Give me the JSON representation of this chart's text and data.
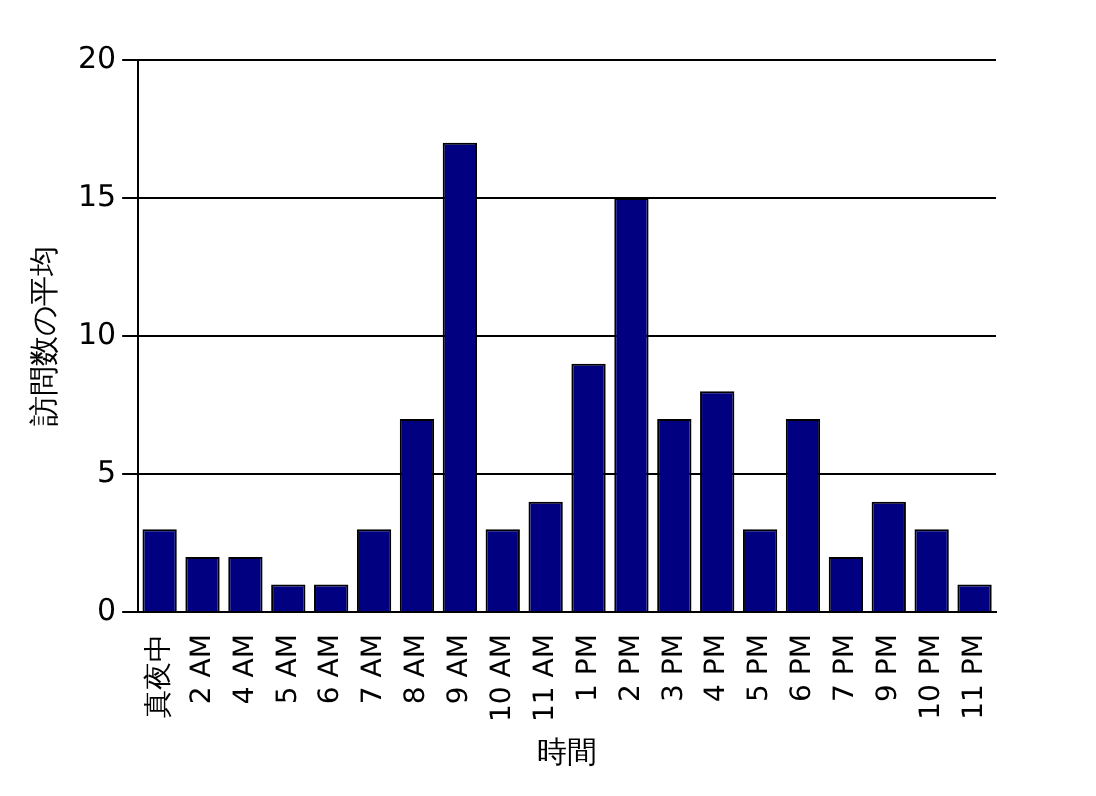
{
  "chart_data": {
    "type": "bar",
    "xlabel": "時間",
    "ylabel": "訪問数の平均",
    "categories": [
      "真夜中",
      "2 AM",
      "4 AM",
      "5 AM",
      "6 AM",
      "7 AM",
      "8 AM",
      "9 AM",
      "10 AM",
      "11 AM",
      "1 PM",
      "2 PM",
      "3 PM",
      "4 PM",
      "5 PM",
      "6 PM",
      "7 PM",
      "9 PM",
      "10 PM",
      "11 PM"
    ],
    "values": [
      3,
      2,
      2,
      1,
      1,
      3,
      7,
      17,
      3,
      4,
      9,
      15,
      7,
      8,
      3,
      7,
      2,
      4,
      3,
      1
    ],
    "color": "#000080",
    "ylim": [
      0,
      20
    ],
    "yticks": [
      0,
      5,
      10,
      15,
      20
    ],
    "grid": "y",
    "legend": false
  }
}
